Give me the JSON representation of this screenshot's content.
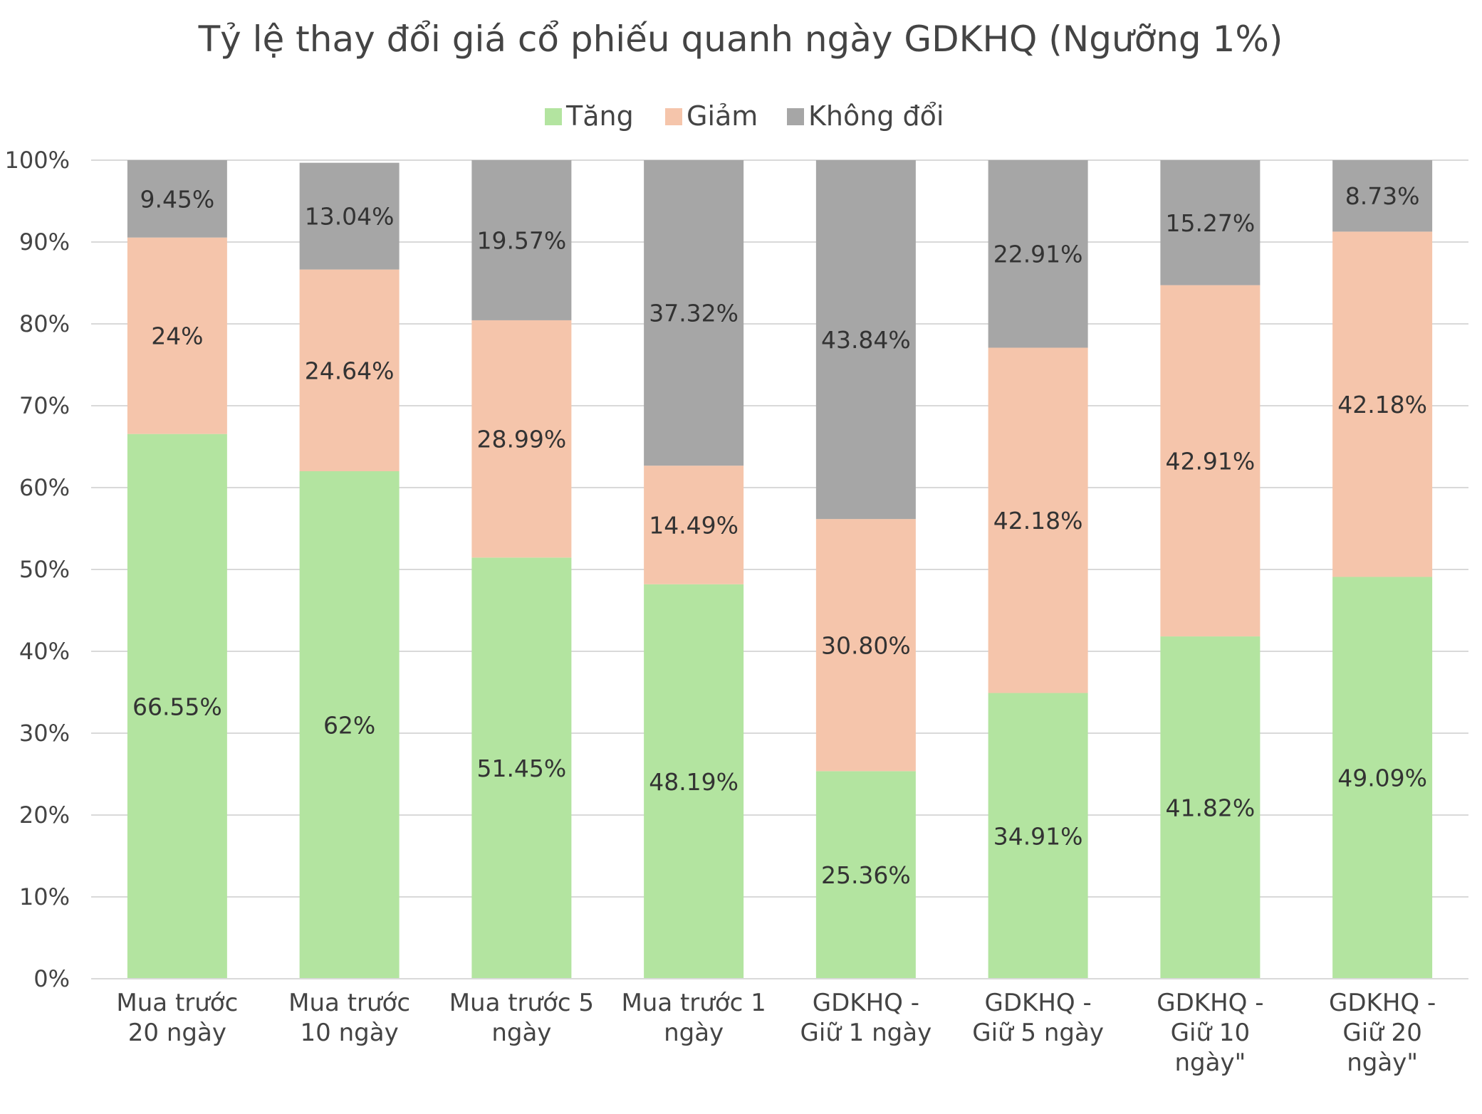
{
  "chart_data": {
    "type": "bar",
    "stacked": true,
    "title": "Tỷ lệ thay đổi giá cổ phiếu quanh ngày GDKHQ (Ngưỡng 1%)",
    "xlabel": "",
    "ylabel": "",
    "ylim": [
      0,
      100
    ],
    "yticks": [
      "0%",
      "10%",
      "20%",
      "30%",
      "40%",
      "50%",
      "60%",
      "70%",
      "80%",
      "90%",
      "100%"
    ],
    "grid": true,
    "legend_position": "top",
    "categories": [
      [
        "Mua trước",
        "20 ngày"
      ],
      [
        "Mua trước",
        "10 ngày"
      ],
      [
        "Mua trước 5",
        "ngày"
      ],
      [
        "Mua trước 1",
        "ngày"
      ],
      [
        "GDKHQ -",
        "Giữ 1 ngày"
      ],
      [
        "GDKHQ -",
        "Giữ 5 ngày"
      ],
      [
        "GDKHQ -",
        "Giữ 10",
        "ngày\""
      ],
      [
        "GDKHQ -",
        "Giữ 20",
        "ngày\""
      ]
    ],
    "series": [
      {
        "name": "Tăng",
        "color": "#b3e4a0",
        "values": [
          66.55,
          62,
          51.45,
          48.19,
          25.36,
          34.91,
          41.82,
          49.09
        ],
        "labels": [
          "66.55%",
          "62%",
          "51.45%",
          "48.19%",
          "25.36%",
          "34.91%",
          "41.82%",
          "49.09%"
        ]
      },
      {
        "name": "Giảm",
        "color": "#f5c5ab",
        "values": [
          24,
          24.64,
          28.99,
          14.49,
          30.8,
          42.18,
          42.91,
          42.18
        ],
        "labels": [
          "24%",
          "24.64%",
          "28.99%",
          "14.49%",
          "30.80%",
          "42.18%",
          "42.91%",
          "42.18%"
        ]
      },
      {
        "name": "Không đổi",
        "color": "#a6a6a6",
        "values": [
          9.45,
          13.04,
          19.57,
          37.32,
          43.84,
          22.91,
          15.27,
          8.73
        ],
        "labels": [
          "9.45%",
          "13.04%",
          "19.57%",
          "37.32%",
          "43.84%",
          "22.91%",
          "15.27%",
          "8.73%"
        ]
      }
    ]
  }
}
